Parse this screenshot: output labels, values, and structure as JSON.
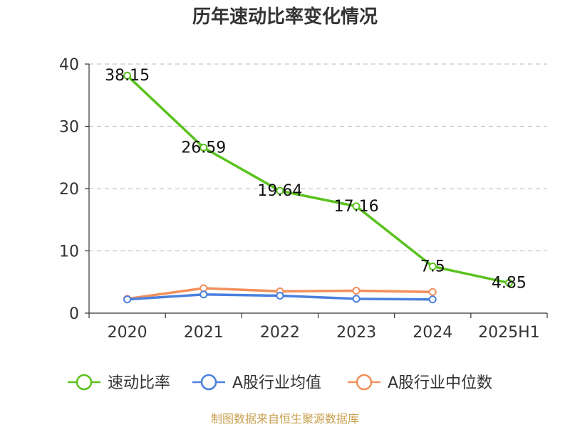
{
  "chart_data": {
    "type": "line",
    "title": "历年速动比率变化情况",
    "categories": [
      "2020",
      "2021",
      "2022",
      "2023",
      "2024",
      "2025H1"
    ],
    "ylim": [
      0,
      40
    ],
    "yticks": [
      "0",
      "10",
      "20",
      "30",
      "40"
    ],
    "grid": "horizontal dashed",
    "legend_position": "bottom",
    "series": [
      {
        "name": "速动比率",
        "color": "#5ac21e",
        "labeled": true,
        "values": [
          38.15,
          26.59,
          19.64,
          17.16,
          7.5,
          4.85
        ],
        "labels": [
          "38.15",
          "26.59",
          "19.64",
          "17.16",
          "7.5",
          "4.85"
        ]
      },
      {
        "name": "A股行业均值",
        "color": "#4a80de",
        "labeled": false,
        "values": [
          2.2,
          3.0,
          2.8,
          2.3,
          2.2,
          null
        ]
      },
      {
        "name": "A股行业中位数",
        "color": "#f28f5c",
        "labeled": false,
        "values": [
          2.3,
          4.0,
          3.5,
          3.6,
          3.4,
          null
        ]
      }
    ]
  },
  "source": "制图数据来自恒生聚源数据库"
}
